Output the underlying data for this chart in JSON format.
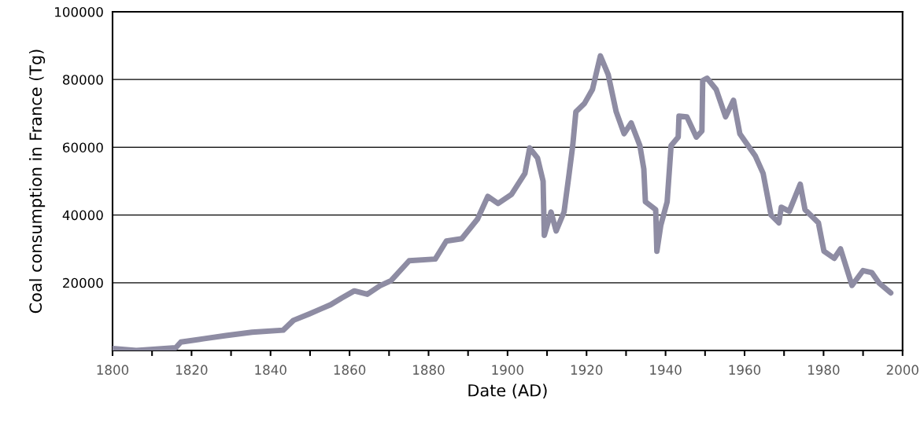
{
  "chart_data": {
    "type": "line",
    "xlabel": "Date (AD)",
    "ylabel": "Coal consumption in France (Tg)",
    "series": [
      {
        "color": "#8e8ca3",
        "x": [
          1800,
          1806,
          1816,
          1817.3,
          1823.3,
          1828.7,
          1835.3,
          1843.2,
          1845.8,
          1849.8,
          1852.6,
          1855.2,
          1858,
          1861.2,
          1864.5,
          1867.7,
          1870.5,
          1875.1,
          1881.7,
          1884.5,
          1888.4,
          1892.4,
          1895,
          1897.6,
          1901,
          1904.4,
          1905.6,
          1907.6,
          1909,
          1909.3,
          1911,
          1912.3,
          1914.3,
          1915.5,
          1916.5,
          1917.3,
          1919.5,
          1921.5,
          1923.5,
          1925.5,
          1927.5,
          1929.5,
          1931.3,
          1933.5,
          1934.5,
          1934.9,
          1937.5,
          1937.8,
          1938.8,
          1940.4,
          1941.4,
          1943.2,
          1943.4,
          1945.4,
          1947.8,
          1949.2,
          1949.4,
          1950.5,
          1952.8,
          1955.2,
          1957.2,
          1958.8,
          1962.7,
          1964.7,
          1966.7,
          1968.7,
          1969.3,
          1971.3,
          1974.1,
          1975.3,
          1978.7,
          1980.1,
          1982.7,
          1984.3,
          1987.2,
          1990,
          1992.2,
          1994,
          1997
        ],
        "values": [
          600,
          0,
          800,
          2500,
          3500,
          4400,
          5400,
          6000,
          8900,
          10800,
          12200,
          13500,
          15500,
          17600,
          16600,
          19100,
          20600,
          26500,
          27000,
          32300,
          33000,
          38800,
          45500,
          43400,
          46100,
          52300,
          59800,
          56800,
          50000,
          34000,
          40900,
          35300,
          40900,
          51400,
          60500,
          70500,
          73000,
          77100,
          87000,
          81400,
          70500,
          64000,
          67200,
          60500,
          53600,
          43900,
          41600,
          29300,
          37000,
          43900,
          60500,
          63000,
          69200,
          69000,
          63000,
          64800,
          79700,
          80400,
          77100,
          69000,
          73900,
          64000,
          57500,
          52300,
          40000,
          37700,
          42300,
          41100,
          49100,
          41600,
          37700,
          29300,
          27200,
          30000,
          19200,
          23600,
          23000,
          20000,
          17000
        ]
      }
    ],
    "xlim": [
      1800,
      2000
    ],
    "xticks": [
      1800,
      {
        "value": 1810,
        "label": null
      },
      1820,
      {
        "value": 1830,
        "label": null
      },
      1840,
      {
        "value": 1850,
        "label": null
      },
      1860,
      {
        "value": 1870,
        "label": null
      },
      1880,
      {
        "value": 1890,
        "label": null
      },
      1900,
      {
        "value": 1910,
        "label": null
      },
      1920,
      {
        "value": 1930,
        "label": null
      },
      1940,
      {
        "value": 1950,
        "label": null
      },
      1960,
      {
        "value": 1970,
        "label": null
      },
      1980,
      {
        "value": 1990,
        "label": null
      },
      2000
    ],
    "ylim": [
      0,
      100000
    ],
    "yticks": [
      20000,
      40000,
      60000,
      80000,
      100000
    ],
    "grid": "y",
    "marker": "none",
    "line_style": "solid"
  }
}
